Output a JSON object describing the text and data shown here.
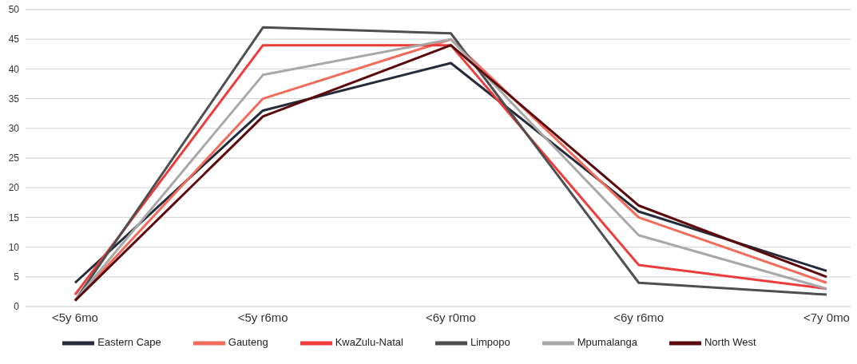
{
  "chart_data": {
    "type": "line",
    "categories": [
      "<5y 6mo",
      "<5y r6mo",
      "<6y r0mo",
      "<6y r6mo",
      "<7y 0mo"
    ],
    "series": [
      {
        "name": "Eastern Cape",
        "color": "#262b3a",
        "values": [
          4,
          33,
          41,
          16,
          6
        ]
      },
      {
        "name": "Gauteng",
        "color": "#f26b5b",
        "values": [
          1,
          35,
          45,
          15,
          4
        ]
      },
      {
        "name": "KwaZulu-Natal",
        "color": "#ee3b3b",
        "values": [
          2,
          44,
          44,
          7,
          3
        ]
      },
      {
        "name": "Limpopo",
        "color": "#4d4f50",
        "values": [
          1,
          47,
          46,
          4,
          2
        ]
      },
      {
        "name": "Mpumalanga",
        "color": "#a8a8a8",
        "values": [
          1,
          39,
          45,
          12,
          3
        ]
      },
      {
        "name": "North West",
        "color": "#5c0a0d",
        "values": [
          1,
          32,
          44,
          17,
          5
        ]
      }
    ],
    "ylim": [
      0,
      50
    ],
    "yticks": [
      0,
      5,
      10,
      15,
      20,
      25,
      30,
      35,
      40,
      45,
      50
    ],
    "grid": "y",
    "legend": "bottom",
    "marker": "none",
    "line_style": "solid"
  }
}
